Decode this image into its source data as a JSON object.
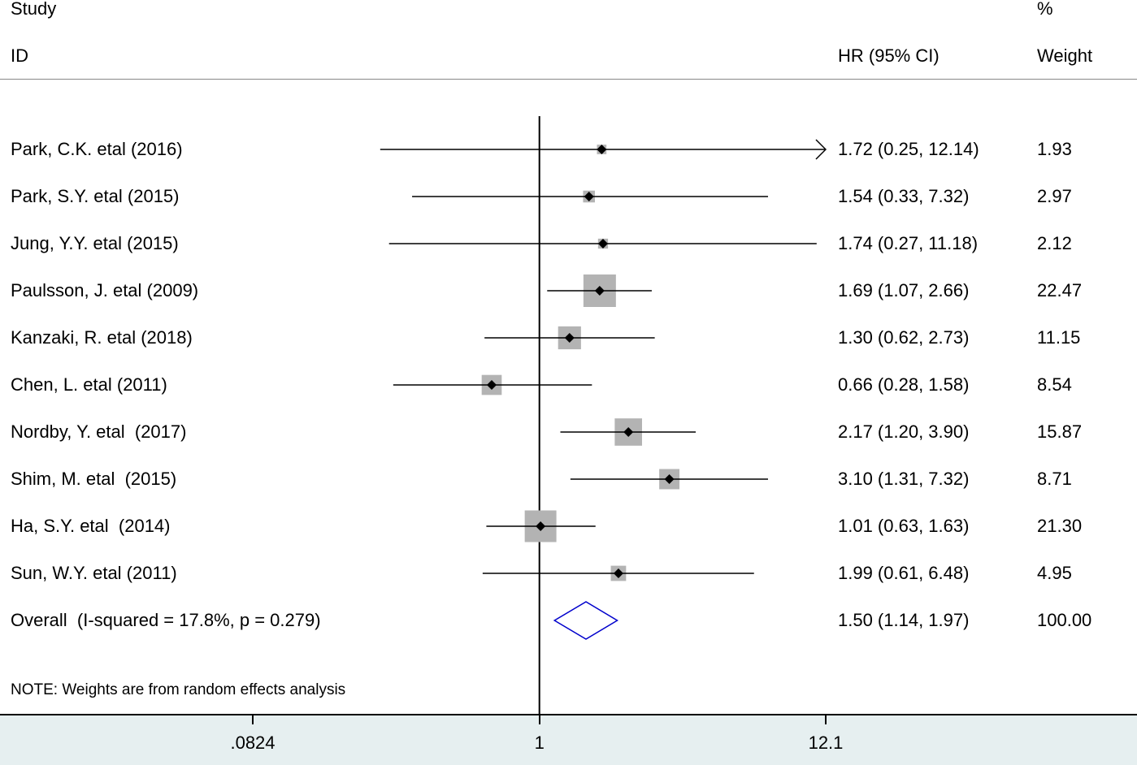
{
  "header": {
    "study_label": "Study",
    "id_label": "ID",
    "hr_label": "HR (95% CI)",
    "pct_label": "%",
    "weight_label": "Weight"
  },
  "note": "NOTE: Weights are from random effects analysis",
  "chart_data": {
    "type": "forest",
    "x_scale": "log",
    "null_line": 1,
    "xlim": [
      0.0824,
      12.1
    ],
    "x_ticks": [
      {
        "value": 0.0824,
        "label": ".0824"
      },
      {
        "value": 1,
        "label": "1"
      },
      {
        "value": 12.1,
        "label": "12.1"
      }
    ],
    "studies": [
      {
        "label": "Park, C.K. etal (2016)",
        "hr": 1.72,
        "lo": 0.25,
        "hi": 12.14,
        "ci_text": "1.72 (0.25, 12.14)",
        "weight": 1.93,
        "weight_text": "1.93",
        "arrow_right": true
      },
      {
        "label": "Park, S.Y. etal (2015)",
        "hr": 1.54,
        "lo": 0.33,
        "hi": 7.32,
        "ci_text": "1.54 (0.33, 7.32)",
        "weight": 2.97,
        "weight_text": "2.97"
      },
      {
        "label": "Jung, Y.Y. etal (2015)",
        "hr": 1.74,
        "lo": 0.27,
        "hi": 11.18,
        "ci_text": "1.74 (0.27, 11.18)",
        "weight": 2.12,
        "weight_text": "2.12"
      },
      {
        "label": "Paulsson, J. etal (2009)",
        "hr": 1.69,
        "lo": 1.07,
        "hi": 2.66,
        "ci_text": "1.69 (1.07, 2.66)",
        "weight": 22.47,
        "weight_text": "22.47"
      },
      {
        "label": "Kanzaki, R. etal (2018)",
        "hr": 1.3,
        "lo": 0.62,
        "hi": 2.73,
        "ci_text": "1.30 (0.62, 2.73)",
        "weight": 11.15,
        "weight_text": "11.15"
      },
      {
        "label": "Chen, L. etal (2011)",
        "hr": 0.66,
        "lo": 0.28,
        "hi": 1.58,
        "ci_text": "0.66 (0.28, 1.58)",
        "weight": 8.54,
        "weight_text": "8.54"
      },
      {
        "label": "Nordby, Y. etal  (2017)",
        "hr": 2.17,
        "lo": 1.2,
        "hi": 3.9,
        "ci_text": "2.17 (1.20, 3.90)",
        "weight": 15.87,
        "weight_text": "15.87"
      },
      {
        "label": "Shim, M. etal  (2015)",
        "hr": 3.1,
        "lo": 1.31,
        "hi": 7.32,
        "ci_text": "3.10 (1.31, 7.32)",
        "weight": 8.71,
        "weight_text": "8.71"
      },
      {
        "label": "Ha, S.Y. etal  (2014)",
        "hr": 1.01,
        "lo": 0.63,
        "hi": 1.63,
        "ci_text": "1.01 (0.63, 1.63)",
        "weight": 21.3,
        "weight_text": "21.30"
      },
      {
        "label": "Sun, W.Y. etal (2011)",
        "hr": 1.99,
        "lo": 0.61,
        "hi": 6.48,
        "ci_text": "1.99 (0.61, 6.48)",
        "weight": 4.95,
        "weight_text": "4.95"
      }
    ],
    "overall": {
      "label": "Overall  (I-squared = 17.8%, p = 0.279)",
      "hr": 1.5,
      "lo": 1.14,
      "hi": 1.97,
      "ci_text": "1.50 (1.14, 1.97)",
      "weight_text": "100.00"
    },
    "colors": {
      "weight_box": "#b3b3b3",
      "point": "#000000",
      "diamond": "#0000cc",
      "footer_bg": "#e6eff0"
    }
  }
}
